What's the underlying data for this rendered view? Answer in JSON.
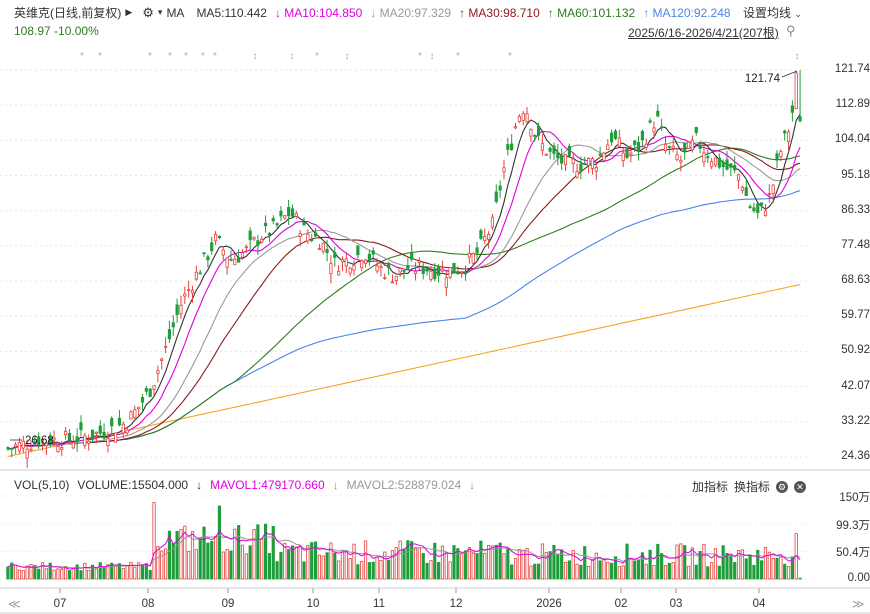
{
  "header": {
    "stock_label": "英维克(日线,前复权)",
    "dropdown_icon": "triangle-right-icon",
    "settings_icon": "gear-icon",
    "ma_label": "MA",
    "ma_items": [
      {
        "text": "MA5:110.442",
        "color": "#333333",
        "arrow": ""
      },
      {
        "text": "MA10:104.850",
        "color": "#e000e0",
        "arrow": "↓"
      },
      {
        "text": "MA20:97.329",
        "color": "#999999",
        "arrow": "↓"
      },
      {
        "text": "MA30:98.710",
        "color": "#8b1a1a",
        "arrow": "↑"
      },
      {
        "text": "MA60:101.132",
        "color": "#2e7d1f",
        "arrow": "↑"
      },
      {
        "text": "MA120:92.248",
        "color": "#4a86e8",
        "arrow": "↑"
      }
    ],
    "settings_button": "设置均线",
    "price_change": "108.97 -10.00%",
    "range_text": "2025/6/16-2026/4/21(207根)",
    "pin_icon": "pin-icon"
  },
  "volume_header": {
    "title": "VOL(5,10)",
    "volume": "VOLUME:15504.000",
    "mavol1": "MAVOL1:479170.660",
    "mavol1_arrow": "↓",
    "mavol2": "MAVOL2:528879.024",
    "mavol2_arrow": "↓",
    "add_indicator": "加指标",
    "switch_indicator": "换指标",
    "settings_icon": "gear-icon",
    "close_icon": "close-icon"
  },
  "footer": {
    "scroll_left": "≪",
    "scroll_right": "≫"
  },
  "chart_data": {
    "type": "candlestick",
    "y_ticks": [
      "121.74",
      "112.89",
      "104.04",
      "95.18",
      "86.33",
      "77.48",
      "68.63",
      "59.77",
      "50.92",
      "42.07",
      "33.22",
      "24.36"
    ],
    "y_range": [
      24.36,
      121.74
    ],
    "vol_ticks": [
      "150万",
      "99.3万",
      "50.4万",
      "0.00"
    ],
    "vol_range": [
      0,
      1500000
    ],
    "x_labels": [
      "07",
      "08",
      "09",
      "10",
      "11",
      "12",
      "2026",
      "02",
      "03",
      "04"
    ],
    "annotations": {
      "high_label": "121.74",
      "low_label": "26.68"
    },
    "colors": {
      "up": "#e8403c",
      "down": "#1f9d3a",
      "ma5": "#333333",
      "ma10": "#e000e0",
      "ma20": "#999999",
      "ma30": "#8b1a1a",
      "ma60": "#2e7d1f",
      "ma120": "#4a86e8",
      "ma250": "#f5a623",
      "vol_ma1": "#e000e0",
      "vol_ma2": "#999999"
    }
  }
}
